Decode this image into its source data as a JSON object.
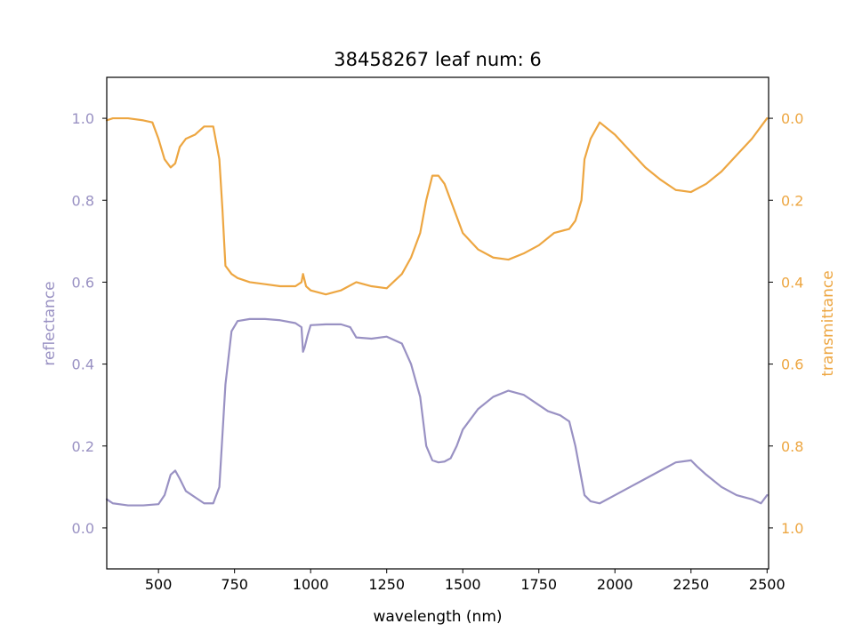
{
  "chart_data": {
    "type": "line",
    "title": "38458267 leaf num: 6",
    "xlabel": "wavelength (nm)",
    "ylabel_left": "reflectance",
    "ylabel_right": "transmittance",
    "xlim": [
      330,
      2505
    ],
    "ylim_left": [
      -0.1,
      1.1
    ],
    "ylim_right": [
      1.1,
      -0.1
    ],
    "right_axis_inverted": true,
    "grid": false,
    "x_ticks": [
      500,
      750,
      1000,
      1250,
      1500,
      1750,
      2000,
      2250,
      2500
    ],
    "y_ticks_left": [
      0.0,
      0.2,
      0.4,
      0.6,
      0.8,
      1.0
    ],
    "y_ticks_right": [
      0.0,
      0.2,
      0.4,
      0.6,
      0.8,
      1.0
    ],
    "colors": {
      "reflectance": "#9991c3",
      "transmittance": "#eda641",
      "axis": "#000000"
    },
    "series": [
      {
        "name": "reflectance",
        "axis": "left",
        "x": [
          330,
          350,
          400,
          450,
          500,
          520,
          540,
          555,
          570,
          590,
          620,
          650,
          680,
          700,
          720,
          740,
          760,
          800,
          850,
          900,
          950,
          970,
          975,
          980,
          990,
          1000,
          1050,
          1100,
          1130,
          1150,
          1200,
          1250,
          1300,
          1330,
          1360,
          1380,
          1400,
          1420,
          1440,
          1460,
          1480,
          1500,
          1550,
          1600,
          1650,
          1700,
          1750,
          1780,
          1820,
          1850,
          1870,
          1890,
          1900,
          1920,
          1950,
          2000,
          2050,
          2100,
          2150,
          2200,
          2250,
          2270,
          2300,
          2350,
          2400,
          2450,
          2480,
          2500
        ],
        "y": [
          0.07,
          0.06,
          0.055,
          0.055,
          0.058,
          0.08,
          0.13,
          0.14,
          0.12,
          0.09,
          0.075,
          0.06,
          0.06,
          0.1,
          0.35,
          0.48,
          0.505,
          0.51,
          0.51,
          0.507,
          0.5,
          0.49,
          0.43,
          0.44,
          0.47,
          0.495,
          0.497,
          0.497,
          0.49,
          0.465,
          0.462,
          0.467,
          0.45,
          0.4,
          0.32,
          0.2,
          0.165,
          0.16,
          0.162,
          0.17,
          0.2,
          0.24,
          0.29,
          0.32,
          0.335,
          0.325,
          0.3,
          0.285,
          0.275,
          0.26,
          0.2,
          0.12,
          0.08,
          0.065,
          0.06,
          0.08,
          0.1,
          0.12,
          0.14,
          0.16,
          0.165,
          0.15,
          0.13,
          0.1,
          0.08,
          0.07,
          0.06,
          0.08
        ]
      },
      {
        "name": "transmittance",
        "axis": "right",
        "x": [
          330,
          350,
          400,
          450,
          480,
          500,
          520,
          540,
          555,
          570,
          590,
          620,
          650,
          680,
          700,
          710,
          720,
          740,
          760,
          800,
          850,
          900,
          950,
          970,
          975,
          985,
          1000,
          1050,
          1100,
          1150,
          1200,
          1250,
          1300,
          1330,
          1360,
          1380,
          1400,
          1420,
          1440,
          1460,
          1480,
          1500,
          1550,
          1600,
          1650,
          1700,
          1750,
          1800,
          1850,
          1870,
          1890,
          1900,
          1920,
          1950,
          2000,
          2050,
          2100,
          2150,
          2200,
          2250,
          2300,
          2350,
          2400,
          2450,
          2500
        ],
        "y": [
          0.005,
          0.0,
          0.0,
          0.005,
          0.01,
          0.05,
          0.1,
          0.12,
          0.11,
          0.07,
          0.05,
          0.04,
          0.02,
          0.02,
          0.1,
          0.22,
          0.36,
          0.38,
          0.39,
          0.4,
          0.405,
          0.41,
          0.41,
          0.4,
          0.38,
          0.41,
          0.42,
          0.43,
          0.42,
          0.4,
          0.41,
          0.415,
          0.38,
          0.34,
          0.28,
          0.2,
          0.14,
          0.14,
          0.16,
          0.2,
          0.24,
          0.28,
          0.32,
          0.34,
          0.345,
          0.33,
          0.31,
          0.28,
          0.27,
          0.25,
          0.2,
          0.1,
          0.05,
          0.01,
          0.04,
          0.08,
          0.12,
          0.15,
          0.175,
          0.18,
          0.16,
          0.13,
          0.09,
          0.05,
          0.0
        ]
      }
    ]
  }
}
